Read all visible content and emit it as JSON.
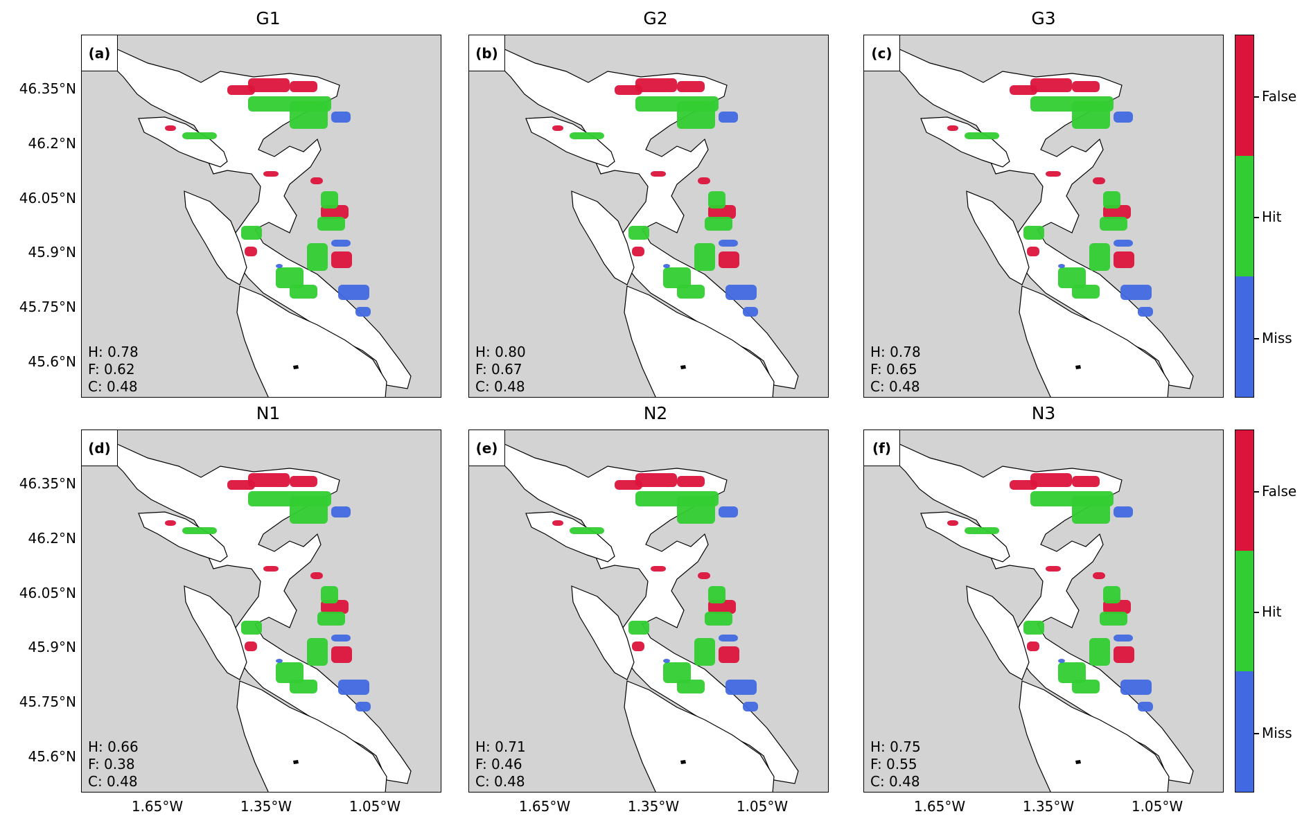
{
  "panels": [
    {
      "title": "G1",
      "letter": "(a)",
      "h": "H: 0.78",
      "f": "F: 0.62",
      "c": "C: 0.48"
    },
    {
      "title": "G2",
      "letter": "(b)",
      "h": "H: 0.80",
      "f": "F: 0.67",
      "c": "C: 0.48"
    },
    {
      "title": "G3",
      "letter": "(c)",
      "h": "H: 0.78",
      "f": "F: 0.65",
      "c": "C: 0.48"
    },
    {
      "title": "N1",
      "letter": "(d)",
      "h": "H: 0.66",
      "f": "F: 0.38",
      "c": "C: 0.48"
    },
    {
      "title": "N2",
      "letter": "(e)",
      "h": "H: 0.71",
      "f": "F: 0.46",
      "c": "C: 0.48"
    },
    {
      "title": "N3",
      "letter": "(f)",
      "h": "H: 0.75",
      "f": "F: 0.55",
      "c": "C: 0.48"
    }
  ],
  "lat_ticks": [
    "46.35°N",
    "46.2°N",
    "46.05°N",
    "45.9°N",
    "45.75°N",
    "45.6°N"
  ],
  "lon_ticks": [
    "1.65°W",
    "1.35°W",
    "1.05°W"
  ],
  "colorbar": {
    "labels": [
      "False",
      "Hit",
      "Miss"
    ],
    "colors": {
      "False": "#dc143c",
      "Hit": "#32cd32",
      "Miss": "#4169e1"
    }
  },
  "map_colors": {
    "sea": "#d3d3d3",
    "land": "#ffffff"
  }
}
